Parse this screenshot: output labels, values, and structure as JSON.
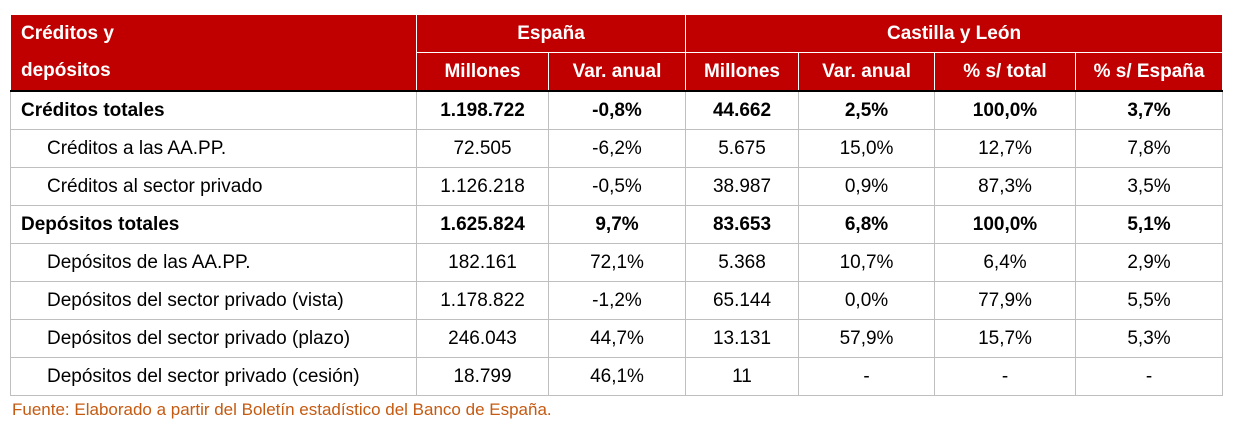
{
  "header": {
    "row_head_line1": "Créditos y",
    "row_head_line2": "depósitos",
    "group_spain": "España",
    "group_cyl": "Castilla y León",
    "cols": [
      "Millones",
      "Var. anual",
      "Millones",
      "Var. anual",
      "% s/ total",
      "% s/ España"
    ]
  },
  "rows": [
    {
      "label": "Créditos totales",
      "values": [
        "1.198.722",
        "-0,8%",
        "44.662",
        "2,5%",
        "100,0%",
        "3,7%"
      ]
    },
    {
      "label": "Créditos a las AA.PP.",
      "values": [
        "72.505",
        "-6,2%",
        "5.675",
        "15,0%",
        "12,7%",
        "7,8%"
      ]
    },
    {
      "label": "Créditos al sector privado",
      "values": [
        "1.126.218",
        "-0,5%",
        "38.987",
        "0,9%",
        "87,3%",
        "3,5%"
      ]
    },
    {
      "label": "Depósitos totales",
      "values": [
        "1.625.824",
        "9,7%",
        "83.653",
        "6,8%",
        "100,0%",
        "5,1%"
      ]
    },
    {
      "label": "Depósitos de las AA.PP.",
      "values": [
        "182.161",
        "72,1%",
        "5.368",
        "10,7%",
        "6,4%",
        "2,9%"
      ]
    },
    {
      "label": "Depósitos del sector privado (vista)",
      "values": [
        "1.178.822",
        "-1,2%",
        "65.144",
        "0,0%",
        "77,9%",
        "5,5%"
      ]
    },
    {
      "label": "Depósitos del sector privado (plazo)",
      "values": [
        "246.043",
        "44,7%",
        "13.131",
        "57,9%",
        "15,7%",
        "5,3%"
      ]
    },
    {
      "label": "Depósitos del sector privado (cesión)",
      "values": [
        "18.799",
        "46,1%",
        "11",
        "-",
        "-",
        "-"
      ]
    }
  ],
  "source": "Fuente: Elaborado a partir del Boletín estadístico del Banco de España.",
  "colors": {
    "header_bg": "#c00000",
    "header_text": "#ffffff",
    "source_text": "#c55a11"
  }
}
